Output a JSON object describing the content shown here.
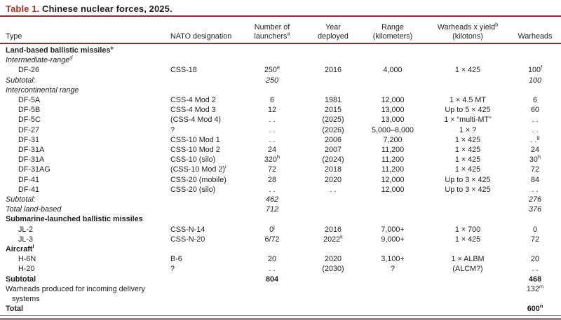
{
  "title": {
    "label": "Table 1.",
    "text": "Chinese nuclear forces, 2025."
  },
  "colors": {
    "accent_red": "#a2352a",
    "rule_maroon": "#86362f",
    "bottom_band_mauve": "#9d8189",
    "thin_bottom_rule_gray": "#8c8c8c",
    "text": "#1f1f1f"
  },
  "header": {
    "type": "Type",
    "nato": "NATO designation",
    "launchers": "Number of\nlaunchers^a",
    "year": "Year\ndeployed",
    "range": "Range\n(kilometers)",
    "yield": "Warheads x yield^b\n(kilotons)",
    "warheads": "Warheads"
  },
  "rows": [
    {
      "id": "land-based-section",
      "style": "section",
      "cells": [
        "Land-based ballistic missiles^c",
        "",
        "",
        "",
        "",
        "",
        ""
      ]
    },
    {
      "id": "intermediate-range",
      "style": "subsection",
      "cells": [
        "Intermediate-range^d",
        "",
        "",
        "",
        "",
        "",
        ""
      ]
    },
    {
      "id": "df-26",
      "style": "item",
      "cells": [
        "DF-26",
        "CSS-18",
        "250^e",
        "2016",
        "4,000",
        "1 × 425",
        "100^f"
      ]
    },
    {
      "id": "subtotal-irbm",
      "style": "subtotal",
      "cells": [
        "Subtotal:",
        "",
        "250",
        "",
        "",
        "",
        "100"
      ]
    },
    {
      "id": "intercontinental",
      "style": "subsection",
      "cells": [
        "Intercontinental range",
        "",
        "",
        "",
        "",
        "",
        ""
      ]
    },
    {
      "id": "df-5a",
      "style": "item",
      "cells": [
        "DF-5A",
        "CSS-4 Mod 2",
        "6",
        "1981",
        "12,000",
        "1 × 4.5 MT",
        "6"
      ]
    },
    {
      "id": "df-5b",
      "style": "item",
      "cells": [
        "DF-5B",
        "CSS-4 Mod 3",
        "12",
        "2015",
        "13,000",
        "Up to 5 × 425",
        "60"
      ]
    },
    {
      "id": "df-5c",
      "style": "item",
      "cells": [
        "DF-5C",
        "(CSS-4 Mod 4)",
        ". .",
        "(2025)",
        "13,000",
        "1 × “multi-MT”",
        ". ."
      ]
    },
    {
      "id": "df-27",
      "style": "item",
      "cells": [
        "DF-27",
        "?",
        ". .",
        "(2026)",
        "5,000–8,000",
        "1 × ?",
        ". ."
      ]
    },
    {
      "id": "df-31",
      "style": "item",
      "cells": [
        "DF-31",
        "CSS-10 Mod 1",
        ". .",
        "2006",
        "7,200",
        "1 × 425",
        ". .^g"
      ]
    },
    {
      "id": "df-31a",
      "style": "item",
      "cells": [
        "DF-31A",
        "CSS-10 Mod 2",
        "24",
        "2007",
        "11,200",
        "1 × 425",
        "24"
      ]
    },
    {
      "id": "df-31a-silo",
      "style": "item",
      "cells": [
        "DF-31A",
        "CSS-10 (silo)",
        "320^h",
        "(2024)",
        "11,200",
        "1 × 425",
        "30^h"
      ]
    },
    {
      "id": "df-31ag",
      "style": "item",
      "cells": [
        "DF-31AG",
        "(CSS-10 Mod 2)^i",
        "72",
        "2018",
        "11,200",
        "1 × 425",
        "72"
      ]
    },
    {
      "id": "df-41-mobile",
      "style": "item",
      "cells": [
        "DF-41",
        "CSS-20 (mobile)",
        "28",
        "2020",
        "12,000",
        "Up to 3 × 425",
        "84"
      ]
    },
    {
      "id": "df-41-silo",
      "style": "item",
      "cells": [
        "DF-41",
        "CSS-20 (silo)",
        ". .",
        ". .",
        "12,000",
        "Up to 3 × 425",
        ". ."
      ]
    },
    {
      "id": "subtotal-icbm",
      "style": "subtotal",
      "cells": [
        "Subtotal:",
        "",
        "462",
        "",
        "",
        "",
        "276"
      ]
    },
    {
      "id": "total-land-based",
      "style": "subtotal",
      "cells": [
        "Total land-based",
        "",
        "712",
        "",
        "",
        "",
        "376"
      ]
    },
    {
      "id": "slbm-section",
      "style": "section",
      "cells": [
        "Submarine-launched ballistic missiles",
        "",
        "",
        "",
        "",
        "",
        ""
      ]
    },
    {
      "id": "jl-2",
      "style": "item",
      "cells": [
        "JL-2",
        "CSS-N-14",
        "0^j",
        "2016",
        "7,000+",
        "1 × 700",
        "0"
      ]
    },
    {
      "id": "jl-3",
      "style": "item",
      "cells": [
        "JL-3",
        "CSS-N-20",
        "6/72",
        "2022^k",
        "9,000+",
        "1 × 425",
        "72"
      ]
    },
    {
      "id": "aircraft-section",
      "style": "section",
      "cells": [
        "Aircraft^l",
        "",
        "",
        "",
        "",
        "",
        ""
      ]
    },
    {
      "id": "h-6n",
      "style": "item",
      "cells": [
        "H-6N",
        "B-6",
        "20",
        "2020",
        "3,100+",
        "1 × ALBM",
        "20"
      ]
    },
    {
      "id": "h-20",
      "style": "item",
      "cells": [
        "H-20",
        "?",
        ". .",
        "(2030)",
        "?",
        "(ALCM?)",
        ". ."
      ]
    },
    {
      "id": "subtotal-all",
      "style": "bold",
      "cells": [
        "Subtotal",
        "",
        "804",
        "",
        "",
        "",
        "468"
      ]
    },
    {
      "id": "warheads-produced",
      "style": "plain",
      "cells": [
        "Warheads produced for incoming delivery\n   systems",
        "",
        "",
        "",
        "",
        "",
        "132^m"
      ]
    },
    {
      "id": "total",
      "style": "bold",
      "cells": [
        "Total",
        "",
        "",
        "",
        "",
        "",
        "600^n"
      ]
    }
  ]
}
